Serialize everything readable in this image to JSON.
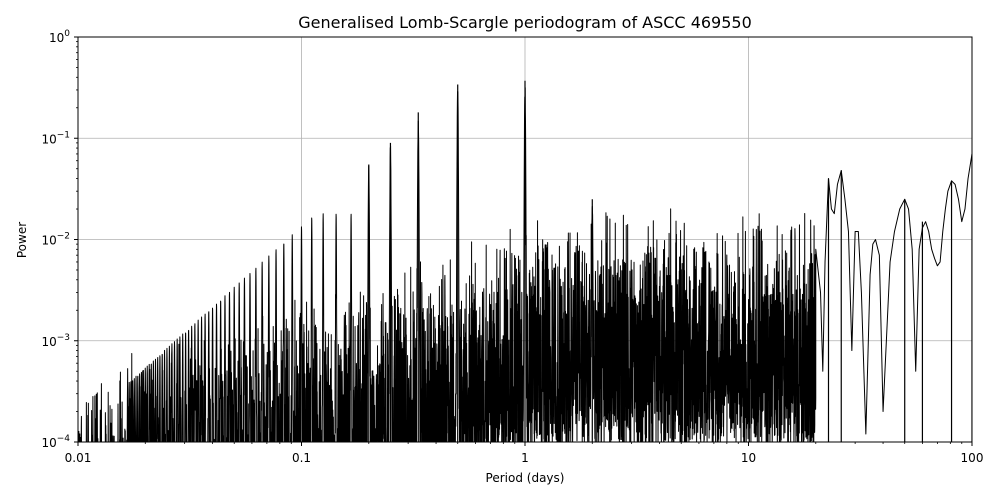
{
  "chart_data": {
    "type": "line",
    "title": "Generalised Lomb-Scargle periodogram of ASCC 469550",
    "xlabel": "Period (days)",
    "ylabel": "Power",
    "xscale": "log",
    "yscale": "log",
    "xlim": [
      0.01,
      100
    ],
    "ylim": [
      0.0001,
      1
    ],
    "grid": true,
    "x_ticks": [
      {
        "value": 0.01,
        "label": "0.01"
      },
      {
        "value": 0.1,
        "label": "0.1"
      },
      {
        "value": 1,
        "label": "1"
      },
      {
        "value": 10,
        "label": "10"
      },
      {
        "value": 100,
        "label": "100"
      }
    ],
    "y_ticks": [
      {
        "value": 0.0001,
        "base": "10",
        "exp": "−4"
      },
      {
        "value": 0.001,
        "base": "10",
        "exp": "−3"
      },
      {
        "value": 0.01,
        "base": "10",
        "exp": "−2"
      },
      {
        "value": 0.1,
        "base": "10",
        "exp": "−1"
      },
      {
        "value": 1,
        "base": "10",
        "exp": "0"
      }
    ],
    "line_color": "#000000",
    "peaks": [
      {
        "period": 0.2,
        "power": 0.055
      },
      {
        "period": 0.25,
        "power": 0.09
      },
      {
        "period": 0.333,
        "power": 0.18
      },
      {
        "period": 0.5,
        "power": 0.34
      },
      {
        "period": 1.0,
        "power": 0.37
      },
      {
        "period": 2.0,
        "power": 0.025
      },
      {
        "period": 22.8,
        "power": 0.04
      },
      {
        "period": 26.0,
        "power": 0.048
      },
      {
        "period": 50.0,
        "power": 0.025
      },
      {
        "period": 60.0,
        "power": 0.015
      },
      {
        "period": 81.0,
        "power": 0.038
      },
      {
        "period": 100.0,
        "power": 0.07
      }
    ],
    "series": [
      {
        "x": [
          20.0,
          21.0,
          21.5,
          22.0,
          22.8,
          23.5,
          24.2,
          25.0,
          26.0,
          27.0,
          28.0,
          29.0,
          30.0,
          31.0,
          32.0,
          33.5,
          35.0,
          36.0,
          37.0,
          38.5,
          40.0,
          42.0,
          43.0,
          45.0,
          47.5,
          50.0,
          52.0,
          54.0,
          56.0,
          58.0,
          60.0,
          62.0,
          64.0,
          66.0,
          68.0,
          70.0,
          72.0,
          74.0,
          76.0,
          78.0,
          81.0,
          84.0,
          87.0,
          90.0,
          93.0,
          96.0,
          100.0
        ],
        "y": [
          0.008,
          0.003,
          0.0005,
          0.006,
          0.04,
          0.02,
          0.018,
          0.035,
          0.048,
          0.025,
          0.012,
          0.0008,
          0.012,
          0.012,
          0.003,
          0.00012,
          0.0045,
          0.009,
          0.01,
          0.007,
          0.0002,
          0.002,
          0.006,
          0.012,
          0.02,
          0.025,
          0.02,
          0.008,
          0.0005,
          0.008,
          0.013,
          0.015,
          0.012,
          0.008,
          0.0065,
          0.0055,
          0.006,
          0.012,
          0.02,
          0.03,
          0.038,
          0.035,
          0.025,
          0.015,
          0.02,
          0.04,
          0.07
        ]
      }
    ]
  }
}
